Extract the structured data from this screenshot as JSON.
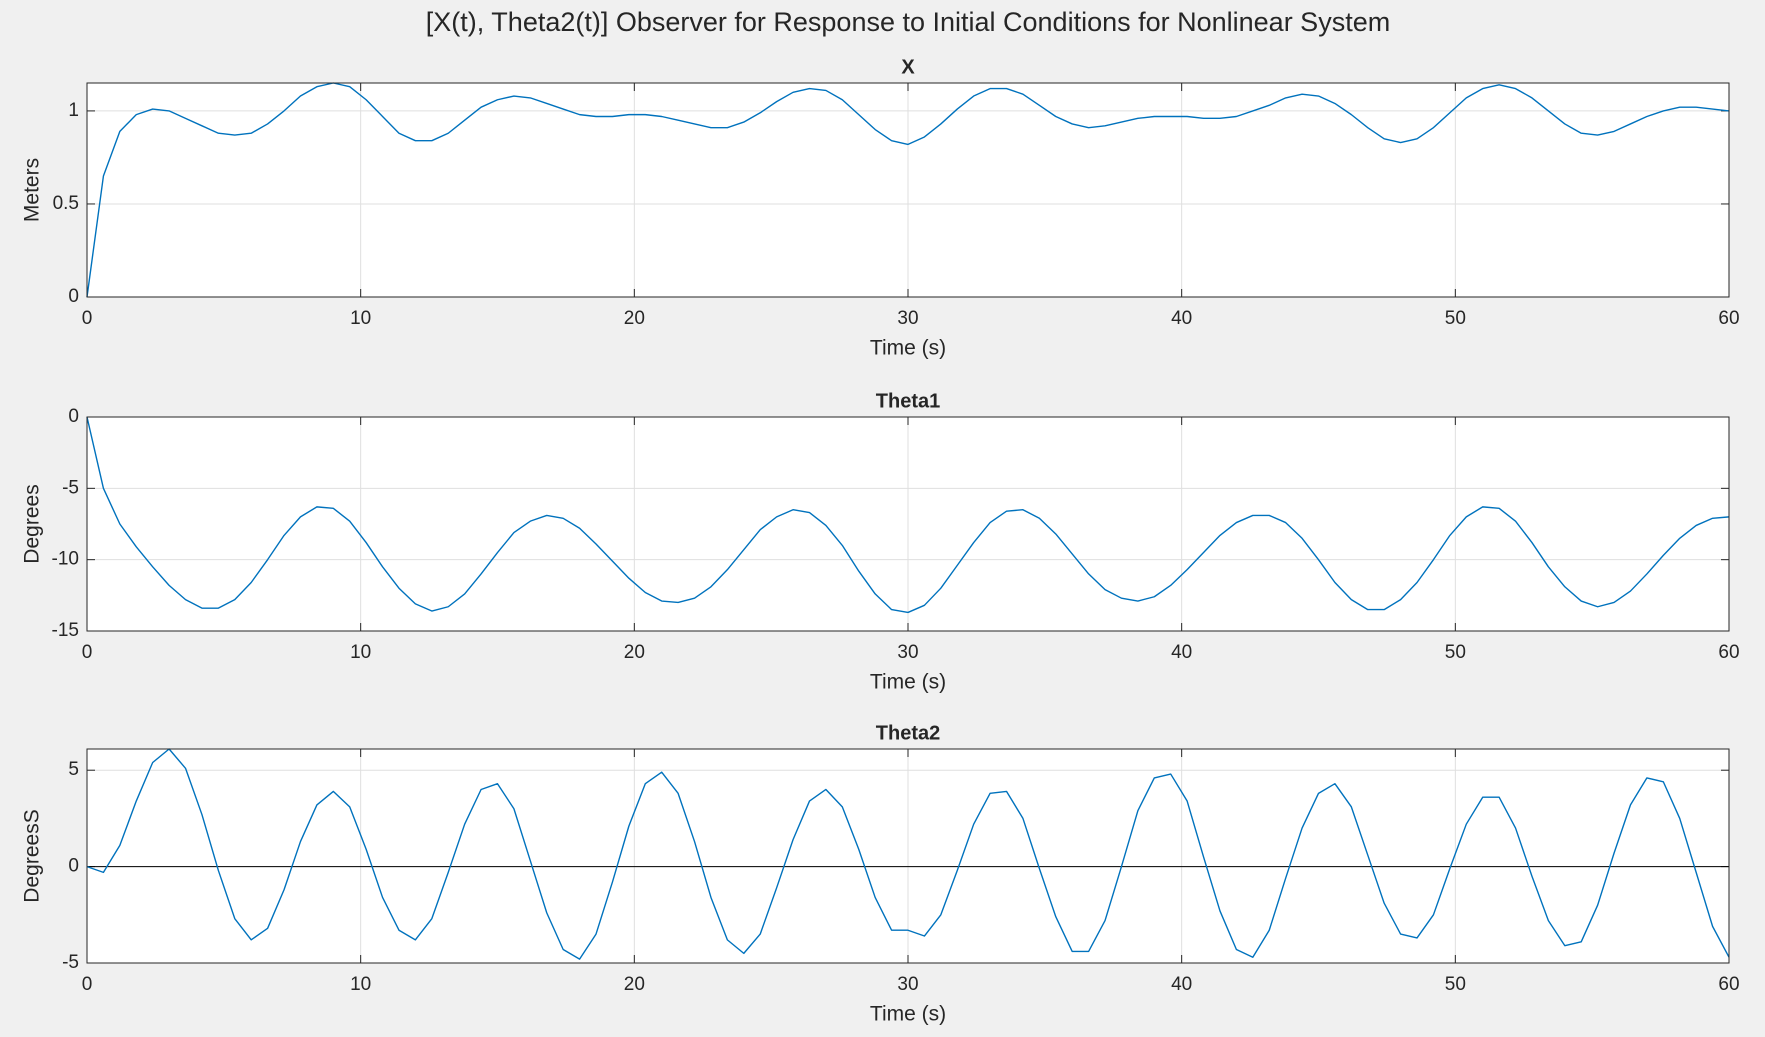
{
  "title": "[X(t), Theta2(t)] Observer for Response to Initial Conditions for Nonlinear System",
  "chart_data": [
    {
      "type": "line",
      "title": "X",
      "xlabel": "Time (s)",
      "ylabel": "Meters",
      "color": "#0072bd",
      "grid": true,
      "xlim": [
        0,
        60
      ],
      "xticks": [
        0,
        10,
        20,
        30,
        40,
        50,
        60
      ],
      "ylim": [
        0,
        1.15
      ],
      "yticks": [
        0,
        0.5,
        1
      ],
      "x": [
        0,
        0.6,
        1.2,
        1.8,
        2.4,
        3,
        3.6,
        4.2,
        4.8,
        5.4,
        6,
        6.6,
        7.2,
        7.8,
        8.4,
        9,
        9.6,
        10.2,
        10.8,
        11.4,
        12,
        12.6,
        13.2,
        13.8,
        14.4,
        15,
        15.6,
        16.2,
        16.8,
        17.4,
        18,
        18.6,
        19.2,
        19.8,
        20.4,
        21,
        21.6,
        22.2,
        22.8,
        23.4,
        24,
        24.6,
        25.2,
        25.8,
        26.4,
        27,
        27.6,
        28.2,
        28.8,
        29.4,
        30,
        30.6,
        31.2,
        31.8,
        32.4,
        33,
        33.6,
        34.2,
        34.8,
        35.4,
        36,
        36.6,
        37.2,
        37.8,
        38.4,
        39,
        39.6,
        40.2,
        40.8,
        41.4,
        42,
        42.6,
        43.2,
        43.8,
        44.4,
        45,
        45.6,
        46.2,
        46.8,
        47.4,
        48,
        48.6,
        49.2,
        49.8,
        50.4,
        51,
        51.6,
        52.2,
        52.8,
        53.4,
        54,
        54.6,
        55.2,
        55.8,
        56.4,
        57,
        57.6,
        58.2,
        58.8,
        59.4,
        60
      ],
      "values": [
        0,
        0.65,
        0.89,
        0.98,
        1.01,
        1.0,
        0.96,
        0.92,
        0.88,
        0.87,
        0.88,
        0.93,
        1.0,
        1.08,
        1.13,
        1.15,
        1.13,
        1.06,
        0.97,
        0.88,
        0.84,
        0.84,
        0.88,
        0.95,
        1.02,
        1.06,
        1.08,
        1.07,
        1.04,
        1.01,
        0.98,
        0.97,
        0.97,
        0.98,
        0.98,
        0.97,
        0.95,
        0.93,
        0.91,
        0.91,
        0.94,
        0.99,
        1.05,
        1.1,
        1.12,
        1.11,
        1.06,
        0.98,
        0.9,
        0.84,
        0.82,
        0.86,
        0.93,
        1.01,
        1.08,
        1.12,
        1.12,
        1.09,
        1.03,
        0.97,
        0.93,
        0.91,
        0.92,
        0.94,
        0.96,
        0.97,
        0.97,
        0.97,
        0.96,
        0.96,
        0.97,
        1.0,
        1.03,
        1.07,
        1.09,
        1.08,
        1.04,
        0.98,
        0.91,
        0.85,
        0.83,
        0.85,
        0.91,
        0.99,
        1.07,
        1.12,
        1.14,
        1.12,
        1.07,
        1.0,
        0.93,
        0.88,
        0.87,
        0.89,
        0.93,
        0.97,
        1.0,
        1.02,
        1.02,
        1.01,
        1.0
      ]
    },
    {
      "type": "line",
      "title": "Theta1",
      "xlabel": "Time (s)",
      "ylabel": "Degrees",
      "color": "#0072bd",
      "grid": true,
      "xlim": [
        0,
        60
      ],
      "xticks": [
        0,
        10,
        20,
        30,
        40,
        50,
        60
      ],
      "ylim": [
        -15,
        0
      ],
      "yticks": [
        -15,
        -10,
        -5,
        0
      ],
      "x": [
        0,
        0.6,
        1.2,
        1.8,
        2.4,
        3,
        3.6,
        4.2,
        4.8,
        5.4,
        6,
        6.6,
        7.2,
        7.8,
        8.4,
        9,
        9.6,
        10.2,
        10.8,
        11.4,
        12,
        12.6,
        13.2,
        13.8,
        14.4,
        15,
        15.6,
        16.2,
        16.8,
        17.4,
        18,
        18.6,
        19.2,
        19.8,
        20.4,
        21,
        21.6,
        22.2,
        22.8,
        23.4,
        24,
        24.6,
        25.2,
        25.8,
        26.4,
        27,
        27.6,
        28.2,
        28.8,
        29.4,
        30,
        30.6,
        31.2,
        31.8,
        32.4,
        33,
        33.6,
        34.2,
        34.8,
        35.4,
        36,
        36.6,
        37.2,
        37.8,
        38.4,
        39,
        39.6,
        40.2,
        40.8,
        41.4,
        42,
        42.6,
        43.2,
        43.8,
        44.4,
        45,
        45.6,
        46.2,
        46.8,
        47.4,
        48,
        48.6,
        49.2,
        49.8,
        50.4,
        51,
        51.6,
        52.2,
        52.8,
        53.4,
        54,
        54.6,
        55.2,
        55.8,
        56.4,
        57,
        57.6,
        58.2,
        58.8,
        59.4,
        60
      ],
      "values": [
        0,
        -5,
        -7.5,
        -9.1,
        -10.5,
        -11.8,
        -12.8,
        -13.4,
        -13.4,
        -12.8,
        -11.6,
        -10.0,
        -8.3,
        -7.0,
        -6.3,
        -6.4,
        -7.3,
        -8.8,
        -10.5,
        -12.0,
        -13.1,
        -13.6,
        -13.3,
        -12.4,
        -11.0,
        -9.5,
        -8.1,
        -7.3,
        -6.9,
        -7.1,
        -7.8,
        -8.9,
        -10.1,
        -11.3,
        -12.3,
        -12.9,
        -13.0,
        -12.7,
        -11.9,
        -10.7,
        -9.3,
        -7.9,
        -7.0,
        -6.5,
        -6.7,
        -7.6,
        -9.0,
        -10.8,
        -12.4,
        -13.5,
        -13.7,
        -13.2,
        -12.0,
        -10.4,
        -8.8,
        -7.4,
        -6.6,
        -6.5,
        -7.1,
        -8.2,
        -9.6,
        -11.0,
        -12.1,
        -12.7,
        -12.9,
        -12.6,
        -11.8,
        -10.7,
        -9.5,
        -8.3,
        -7.4,
        -6.9,
        -6.9,
        -7.4,
        -8.5,
        -10.0,
        -11.6,
        -12.8,
        -13.5,
        -13.5,
        -12.8,
        -11.6,
        -10.0,
        -8.3,
        -7.0,
        -6.3,
        -6.4,
        -7.3,
        -8.8,
        -10.5,
        -11.9,
        -12.9,
        -13.3,
        -13.0,
        -12.2,
        -11.0,
        -9.7,
        -8.5,
        -7.6,
        -7.1,
        -7.0
      ]
    },
    {
      "type": "line",
      "title": "Theta2",
      "xlabel": "Time (s)",
      "ylabel": "DegreesS",
      "color": "#0072bd",
      "grid": true,
      "hline": 0,
      "xlim": [
        0,
        60
      ],
      "xticks": [
        0,
        10,
        20,
        30,
        40,
        50,
        60
      ],
      "ylim": [
        -5,
        6.1
      ],
      "yticks": [
        -5,
        0,
        5
      ],
      "x": [
        0,
        0.6,
        1.2,
        1.8,
        2.4,
        3,
        3.6,
        4.2,
        4.8,
        5.4,
        6,
        6.6,
        7.2,
        7.8,
        8.4,
        9,
        9.6,
        10.2,
        10.8,
        11.4,
        12,
        12.6,
        13.2,
        13.8,
        14.4,
        15,
        15.6,
        16.2,
        16.8,
        17.4,
        18,
        18.6,
        19.2,
        19.8,
        20.4,
        21,
        21.6,
        22.2,
        22.8,
        23.4,
        24,
        24.6,
        25.2,
        25.8,
        26.4,
        27,
        27.6,
        28.2,
        28.8,
        29.4,
        30,
        30.6,
        31.2,
        31.8,
        32.4,
        33,
        33.6,
        34.2,
        34.8,
        35.4,
        36,
        36.6,
        37.2,
        37.8,
        38.4,
        39,
        39.6,
        40.2,
        40.8,
        41.4,
        42,
        42.6,
        43.2,
        43.8,
        44.4,
        45,
        45.6,
        46.2,
        46.8,
        47.4,
        48,
        48.6,
        49.2,
        49.8,
        50.4,
        51,
        51.6,
        52.2,
        52.8,
        53.4,
        54,
        54.6,
        55.2,
        55.8,
        56.4,
        57,
        57.6,
        58.2,
        58.8,
        59.4,
        60
      ],
      "values": [
        0,
        -0.3,
        1.1,
        3.4,
        5.4,
        6.1,
        5.1,
        2.7,
        -0.2,
        -2.7,
        -3.8,
        -3.2,
        -1.2,
        1.3,
        3.2,
        3.9,
        3.1,
        0.9,
        -1.6,
        -3.3,
        -3.8,
        -2.7,
        -0.3,
        2.2,
        4.0,
        4.3,
        3.0,
        0.3,
        -2.4,
        -4.3,
        -4.8,
        -3.5,
        -0.8,
        2.1,
        4.3,
        4.9,
        3.8,
        1.3,
        -1.6,
        -3.8,
        -4.5,
        -3.5,
        -1.1,
        1.4,
        3.4,
        4.0,
        3.1,
        0.9,
        -1.6,
        -3.3,
        -3.3,
        -3.6,
        -2.5,
        -0.2,
        2.2,
        3.8,
        3.9,
        2.5,
        -0.1,
        -2.6,
        -4.4,
        -4.4,
        -2.8,
        0.0,
        2.9,
        4.6,
        4.8,
        3.4,
        0.5,
        -2.3,
        -4.3,
        -4.7,
        -3.3,
        -0.6,
        2.0,
        3.8,
        4.3,
        3.1,
        0.6,
        -1.9,
        -3.5,
        -3.7,
        -2.5,
        -0.1,
        2.2,
        3.6,
        3.6,
        2.0,
        -0.5,
        -2.8,
        -4.1,
        -3.9,
        -2.0,
        0.7,
        3.2,
        4.6,
        4.4,
        2.5,
        -0.3,
        -3.1,
        -4.7
      ]
    }
  ]
}
